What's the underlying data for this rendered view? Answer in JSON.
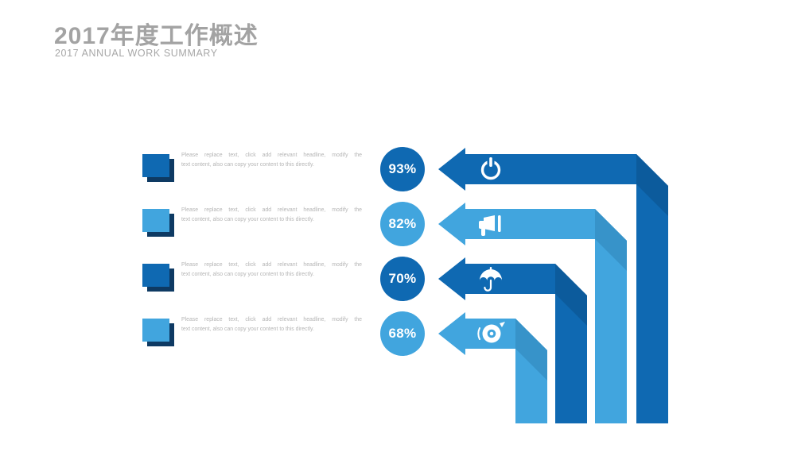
{
  "slide": {
    "title": "2017年度工作概述",
    "subtitle": "2017 ANNUAL WORK SUMMARY"
  },
  "colors": {
    "background": "#ffffff",
    "dark_blue": "#0f69b2",
    "dark_blue_fold": "#0c5b9c",
    "light_blue": "#41a5de",
    "light_blue_fold": "#3793c9",
    "square_shadow": "#0e3a63",
    "title_gray": "#a3a3a3",
    "body_text_gray": "#b5b5b5",
    "icon_white": "#ffffff"
  },
  "rows": [
    {
      "percent": "93%",
      "icon": "power-icon",
      "theme": "dark",
      "text_lines": [
        "Please replace text, click add relevant headline, modify the",
        "text content, also can copy your content to this directly."
      ]
    },
    {
      "percent": "82%",
      "icon": "megaphone-icon",
      "theme": "light",
      "text_lines": [
        "Please replace text, click add relevant headline, modify the",
        "text content, also can copy your content to this directly."
      ]
    },
    {
      "percent": "70%",
      "icon": "umbrella-icon",
      "theme": "dark",
      "text_lines": [
        "Please replace text, click add relevant headline, modify the",
        "text content, also can copy your content to this directly."
      ]
    },
    {
      "percent": "68%",
      "icon": "disc-icon",
      "theme": "light",
      "text_lines": [
        "Please replace text, click add relevant headline, modify the",
        "text content, also can copy your content to this directly."
      ]
    }
  ]
}
